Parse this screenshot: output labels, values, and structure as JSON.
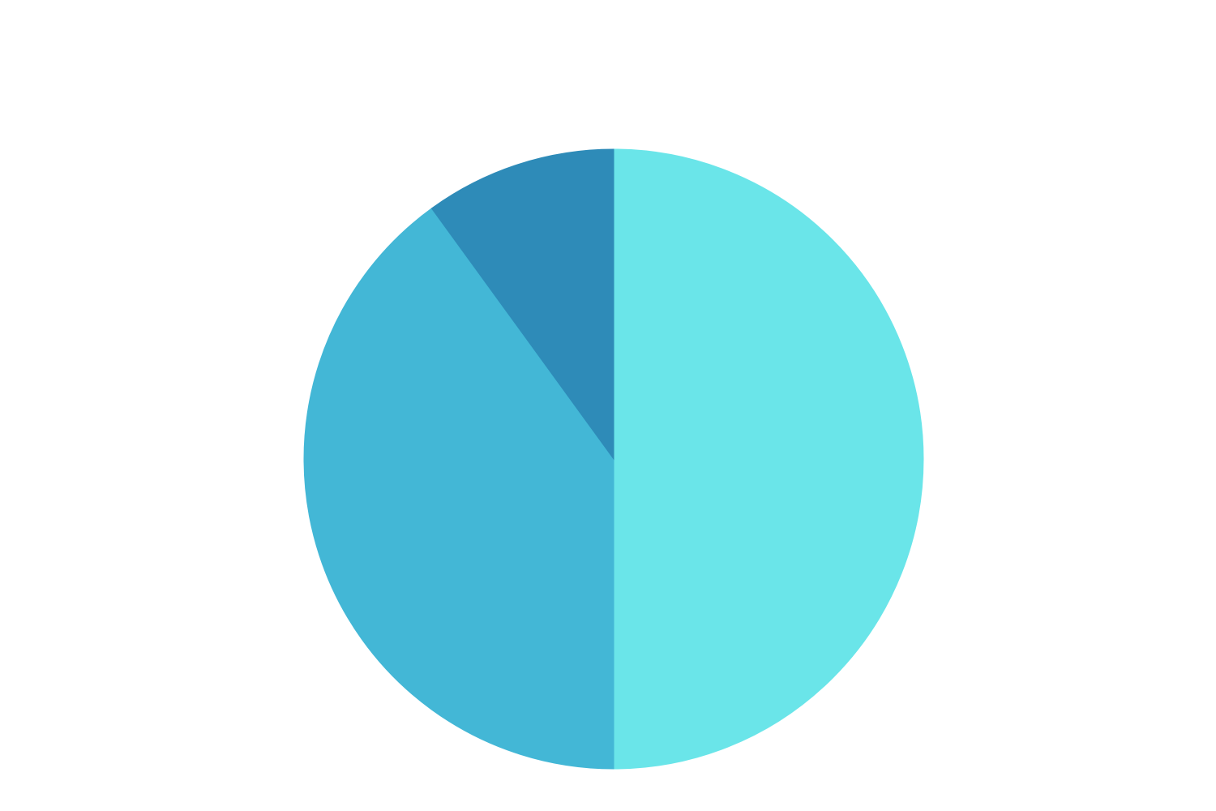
{
  "chart_data": {
    "type": "pie",
    "start_angle_deg": 0,
    "direction": "clockwise",
    "slices": [
      {
        "value": 50,
        "color": "#6ae5e9"
      },
      {
        "value": 40,
        "color": "#43b7d6"
      },
      {
        "value": 10,
        "color": "#2e8bb8"
      }
    ]
  }
}
